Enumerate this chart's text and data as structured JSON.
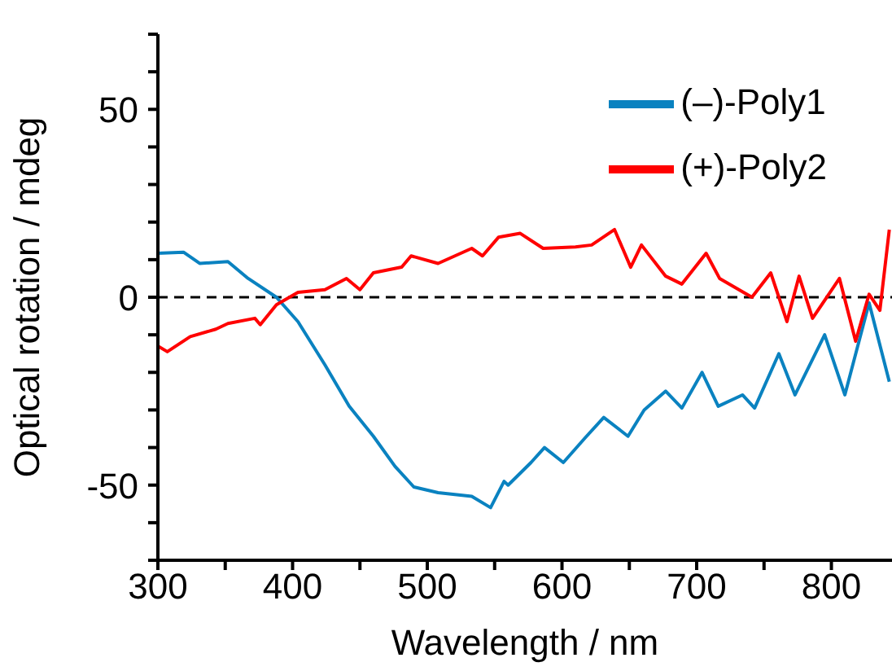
{
  "chart_data": {
    "type": "line",
    "xlabel": "Wavelength / nm",
    "ylabel": "Optical rotation / mdeg",
    "xlim": [
      300,
      845
    ],
    "ylim": [
      -70,
      70
    ],
    "xticks": [
      300,
      {
        "value": 350,
        "label": null
      },
      400,
      {
        "value": 450,
        "label": null
      },
      500,
      {
        "value": 550,
        "label": null
      },
      600,
      {
        "value": 650,
        "label": null
      },
      700,
      {
        "value": 750,
        "label": null
      },
      800
    ],
    "yticks": [
      {
        "value": -70,
        "label": null
      },
      {
        "value": -60,
        "label": null
      },
      -50,
      {
        "value": -40,
        "label": null
      },
      {
        "value": -30,
        "label": null
      },
      {
        "value": -20,
        "label": null
      },
      {
        "value": -10,
        "label": null
      },
      0,
      {
        "value": 10,
        "label": null
      },
      {
        "value": 20,
        "label": null
      },
      {
        "value": 30,
        "label": null
      },
      {
        "value": 40,
        "label": null
      },
      50,
      {
        "value": 60,
        "label": null
      },
      {
        "value": 70,
        "label": null
      }
    ],
    "grid": false,
    "legend": "top right",
    "marker": "none",
    "line_style": "solid",
    "ref_lines": [
      {
        "axis": "y",
        "value": 0,
        "color": "#000000",
        "line_style": "dashed"
      }
    ],
    "series": [
      {
        "name": "(–)-Poly1",
        "color": "#0a82c0",
        "x": [
          300,
          319,
          331,
          352,
          367,
          388,
          404,
          424,
          442,
          460,
          476,
          490,
          508,
          533,
          547,
          557,
          560,
          577,
          587,
          601,
          617,
          631,
          649,
          661,
          677,
          689,
          704,
          716,
          734,
          743,
          761,
          773,
          795,
          810,
          828,
          843
        ],
        "values": [
          11.7,
          12,
          9,
          9.5,
          5,
          0,
          -6.5,
          -18,
          -29,
          -37,
          -45,
          -50.5,
          -52,
          -53,
          -56,
          -49,
          -50,
          -44,
          -40,
          -44,
          -37.5,
          -32,
          -37,
          -30,
          -25,
          -29.5,
          -20,
          -29,
          -26,
          -29.5,
          -15,
          -26,
          -10,
          -26,
          -1.5,
          -22.5
        ]
      },
      {
        "name": "(+)-Poly2",
        "color": "#ff0000",
        "x": [
          300,
          307,
          324,
          343,
          352,
          372,
          376,
          388,
          404,
          424,
          440,
          450,
          460,
          481,
          488,
          508,
          533,
          541,
          553,
          569,
          586,
          610,
          622,
          639,
          651,
          659,
          677,
          689,
          707,
          717,
          741,
          755,
          767,
          776,
          786,
          806,
          818,
          828,
          836,
          843
        ],
        "values": [
          -13,
          -14.5,
          -10.5,
          -8.5,
          -7,
          -5.6,
          -7.3,
          -2,
          1.3,
          2,
          5,
          2,
          6.5,
          8,
          11,
          9,
          13,
          11,
          16,
          17,
          13,
          13.4,
          13.9,
          18,
          8,
          13.9,
          5.6,
          3.5,
          11.7,
          5,
          0,
          6.5,
          -6.5,
          5.6,
          -5.6,
          5,
          -11.7,
          0.8,
          -3.5,
          18
        ]
      }
    ]
  }
}
